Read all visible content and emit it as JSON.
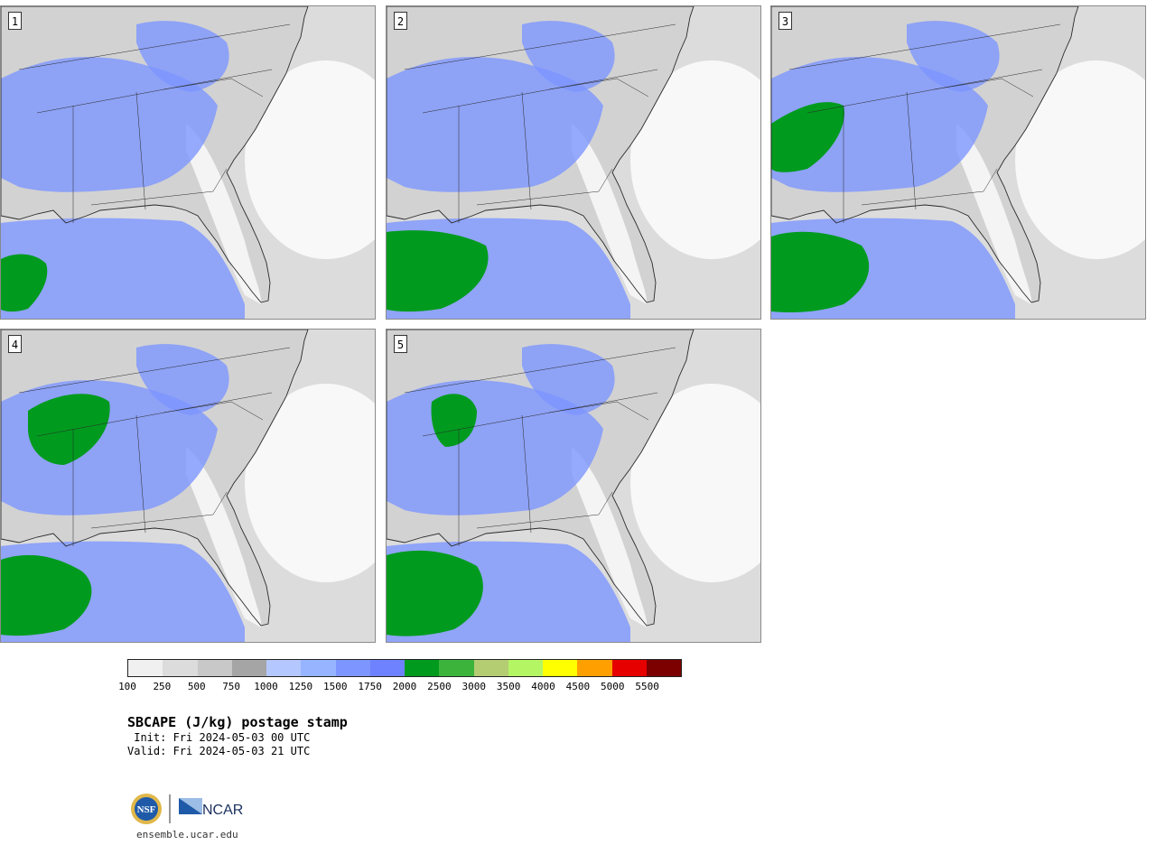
{
  "panels": [
    {
      "label": "1"
    },
    {
      "label": "2"
    },
    {
      "label": "3"
    },
    {
      "label": "4"
    },
    {
      "label": "5"
    }
  ],
  "legend": {
    "ticks": [
      "100",
      "250",
      "500",
      "750",
      "1000",
      "1250",
      "1500",
      "1750",
      "2000",
      "2500",
      "3000",
      "3500",
      "4000",
      "4500",
      "5000",
      "5500"
    ],
    "colors": [
      "#f0f0f0",
      "#dcdcdc",
      "#c8c8c8",
      "#a5a5a5",
      "#b4c8ff",
      "#96b4ff",
      "#7d96ff",
      "#6e82ff",
      "#009b1e",
      "#3cb43c",
      "#b4cd73",
      "#b4f564",
      "#ffff00",
      "#ffa000",
      "#e60000",
      "#7d0000"
    ]
  },
  "title": "SBCAPE (J/kg) postage stamp",
  "init": " Init: Fri 2024-05-03 00 UTC",
  "valid": "Valid: Fri 2024-05-03 21 UTC",
  "logos": {
    "nsf": "NSF",
    "ncar": "NCAR"
  },
  "site": "ensemble.ucar.edu",
  "colors": {
    "land_gray": "#d2d2d2",
    "ocean_white": "#f8f8f8",
    "cape_blue": "#7d96ff",
    "cape_green": "#009b1e",
    "border": "#2a2a2a"
  }
}
